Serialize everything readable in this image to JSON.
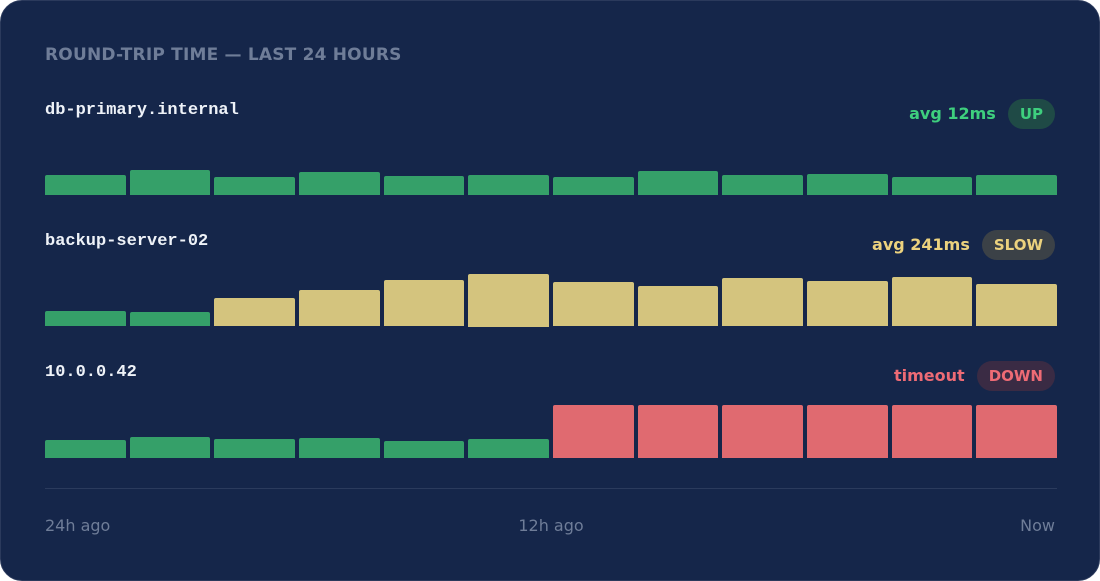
{
  "header": {
    "title": "ROUND-TRIP TIME — LAST 24 HOURS"
  },
  "hosts": [
    {
      "name": "db-primary.internal",
      "summary": "avg 12ms",
      "status": "UP",
      "accent": "#3ecf7e",
      "badge_bg": "#1f4a46",
      "values": [
        20,
        25,
        18,
        23,
        19,
        20,
        18,
        24,
        20,
        21,
        18,
        20
      ],
      "colors": [
        "#35a069",
        "#35a069",
        "#35a069",
        "#35a069",
        "#35a069",
        "#35a069",
        "#35a069",
        "#35a069",
        "#35a069",
        "#35a069",
        "#35a069",
        "#35a069"
      ]
    },
    {
      "name": "backup-server-02",
      "summary": "avg 241ms",
      "status": "SLOW",
      "accent": "#ecd27e",
      "badge_bg": "#3b4147",
      "values": [
        15,
        14,
        28,
        36,
        46,
        52,
        44,
        40,
        48,
        45,
        49,
        42
      ],
      "colors": [
        "#35a069",
        "#35a069",
        "#d4c47e",
        "#d4c47e",
        "#d4c47e",
        "#d4c47e",
        "#d4c47e",
        "#d4c47e",
        "#d4c47e",
        "#d4c47e",
        "#d4c47e",
        "#d4c47e"
      ]
    },
    {
      "name": "10.0.0.42",
      "summary": "timeout",
      "status": "DOWN",
      "accent": "#ee6b75",
      "badge_bg": "#3a2b44",
      "values": [
        18,
        21,
        19,
        20,
        17,
        19,
        52,
        52,
        52,
        52,
        52,
        52
      ],
      "colors": [
        "#35a069",
        "#35a069",
        "#35a069",
        "#35a069",
        "#35a069",
        "#35a069",
        "#e06a70",
        "#e06a70",
        "#e06a70",
        "#e06a70",
        "#e06a70",
        "#e06a70"
      ]
    }
  ],
  "time_axis": [
    "24h ago",
    "12h ago",
    "Now"
  ]
}
